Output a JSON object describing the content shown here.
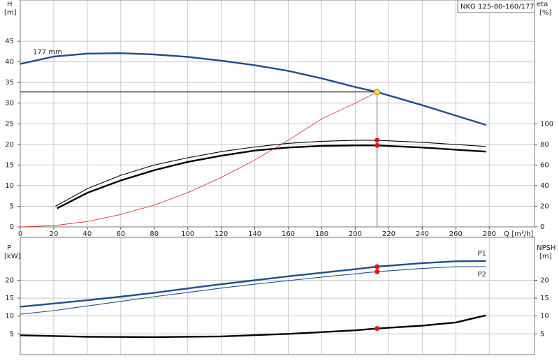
{
  "chart_data": [
    {
      "type": "line",
      "title": "NKG 125-80-160/177",
      "xlabel": "Q [m³/h]",
      "ylabel": "H",
      "yunit": "[m]",
      "y2label": "eta",
      "y2unit": "[%]",
      "xlim": [
        0,
        307
      ],
      "xticks": [
        0,
        20,
        40,
        60,
        80,
        100,
        120,
        140,
        160,
        180,
        200,
        220,
        240,
        260,
        280
      ],
      "ylim": [
        0,
        55
      ],
      "yticks": [
        0,
        5,
        10,
        15,
        20,
        25,
        30,
        35,
        40,
        45
      ],
      "y2lim": [
        0,
        220
      ],
      "y2ticks": [
        0,
        20,
        40,
        60,
        80,
        100
      ],
      "grid": true,
      "series": [
        {
          "name": "177 mm",
          "color": "#1f4e8c",
          "line": "thick",
          "x": [
            0,
            20,
            40,
            60,
            80,
            100,
            120,
            140,
            160,
            180,
            200,
            213,
            240,
            278
          ],
          "values": [
            39.5,
            41.3,
            42,
            42.1,
            41.8,
            41.2,
            40.3,
            39.2,
            37.8,
            36,
            33.9,
            32.7,
            29.5,
            24.7
          ]
        },
        {
          "color": "#000000",
          "line": "thin",
          "axis": "y2",
          "x": [
            21,
            40,
            60,
            80,
            100,
            120,
            140,
            160,
            180,
            200,
            213,
            240,
            278
          ],
          "values": [
            20,
            37,
            50,
            60,
            67,
            73,
            77.5,
            81,
            83,
            84,
            84,
            82,
            78
          ]
        },
        {
          "color": "#000000",
          "line": "thick",
          "axis": "y2",
          "x": [
            22,
            40,
            60,
            80,
            100,
            120,
            140,
            160,
            180,
            200,
            213,
            240,
            278
          ],
          "values": [
            18,
            33,
            45,
            55,
            63,
            69,
            74,
            77,
            78.5,
            79,
            79,
            77,
            73
          ]
        },
        {
          "color": "#e82020",
          "line": "hair",
          "x": [
            0,
            20,
            40,
            60,
            80,
            100,
            120,
            140,
            160,
            180,
            200,
            213
          ],
          "values": [
            0,
            0.3,
            1.3,
            3,
            5.3,
            8.3,
            12,
            16.2,
            21,
            26.2,
            30,
            32.7
          ]
        }
      ],
      "operating_point": {
        "x": 213,
        "y": 32.7
      },
      "points": [
        {
          "x": 213,
          "y": 84,
          "axis": "y2"
        },
        {
          "x": 213,
          "y": 79,
          "axis": "y2"
        }
      ]
    },
    {
      "type": "line",
      "ylabel": "P",
      "yunit": "[kW]",
      "y2label": "NPSH",
      "y2unit": "[m]",
      "xlim": [
        0,
        307
      ],
      "ylim": [
        -0.8,
        32
      ],
      "yticks": [
        5,
        10,
        15,
        20
      ],
      "y2lim": [
        -0.8,
        32
      ],
      "y2ticks": [
        5,
        10,
        15,
        20
      ],
      "grid": true,
      "series": [
        {
          "name": "P1",
          "color": "#1f4e8c",
          "line": "thick",
          "x": [
            0,
            20,
            40,
            60,
            80,
            100,
            120,
            140,
            160,
            180,
            200,
            213,
            240,
            260,
            278
          ],
          "values": [
            12.6,
            13.5,
            14.4,
            15.4,
            16.5,
            17.7,
            18.9,
            20,
            21.1,
            22.1,
            23.1,
            23.8,
            24.8,
            25.3,
            25.4
          ]
        },
        {
          "name": "P2",
          "color": "#1f4e8c",
          "line": "thin",
          "x": [
            0,
            20,
            40,
            60,
            80,
            100,
            120,
            140,
            160,
            180,
            200,
            213,
            240,
            260,
            278
          ],
          "values": [
            10.5,
            11.5,
            12.8,
            14.1,
            15.4,
            16.6,
            17.8,
            18.9,
            19.9,
            20.9,
            21.8,
            22.4,
            23.3,
            23.8,
            23.8
          ]
        },
        {
          "color": "#000000",
          "line": "thick",
          "axis": "y2",
          "x": [
            0,
            40,
            80,
            120,
            160,
            200,
            213,
            240,
            260,
            278
          ],
          "values": [
            4.6,
            4.2,
            4.1,
            4.3,
            5,
            6,
            6.5,
            7.3,
            8.2,
            10.2
          ]
        }
      ],
      "points": [
        {
          "x": 213,
          "y": 23.8
        },
        {
          "x": 213,
          "y": 22.4
        },
        {
          "x": 213,
          "y": 6.5,
          "axis": "y2"
        }
      ]
    }
  ]
}
